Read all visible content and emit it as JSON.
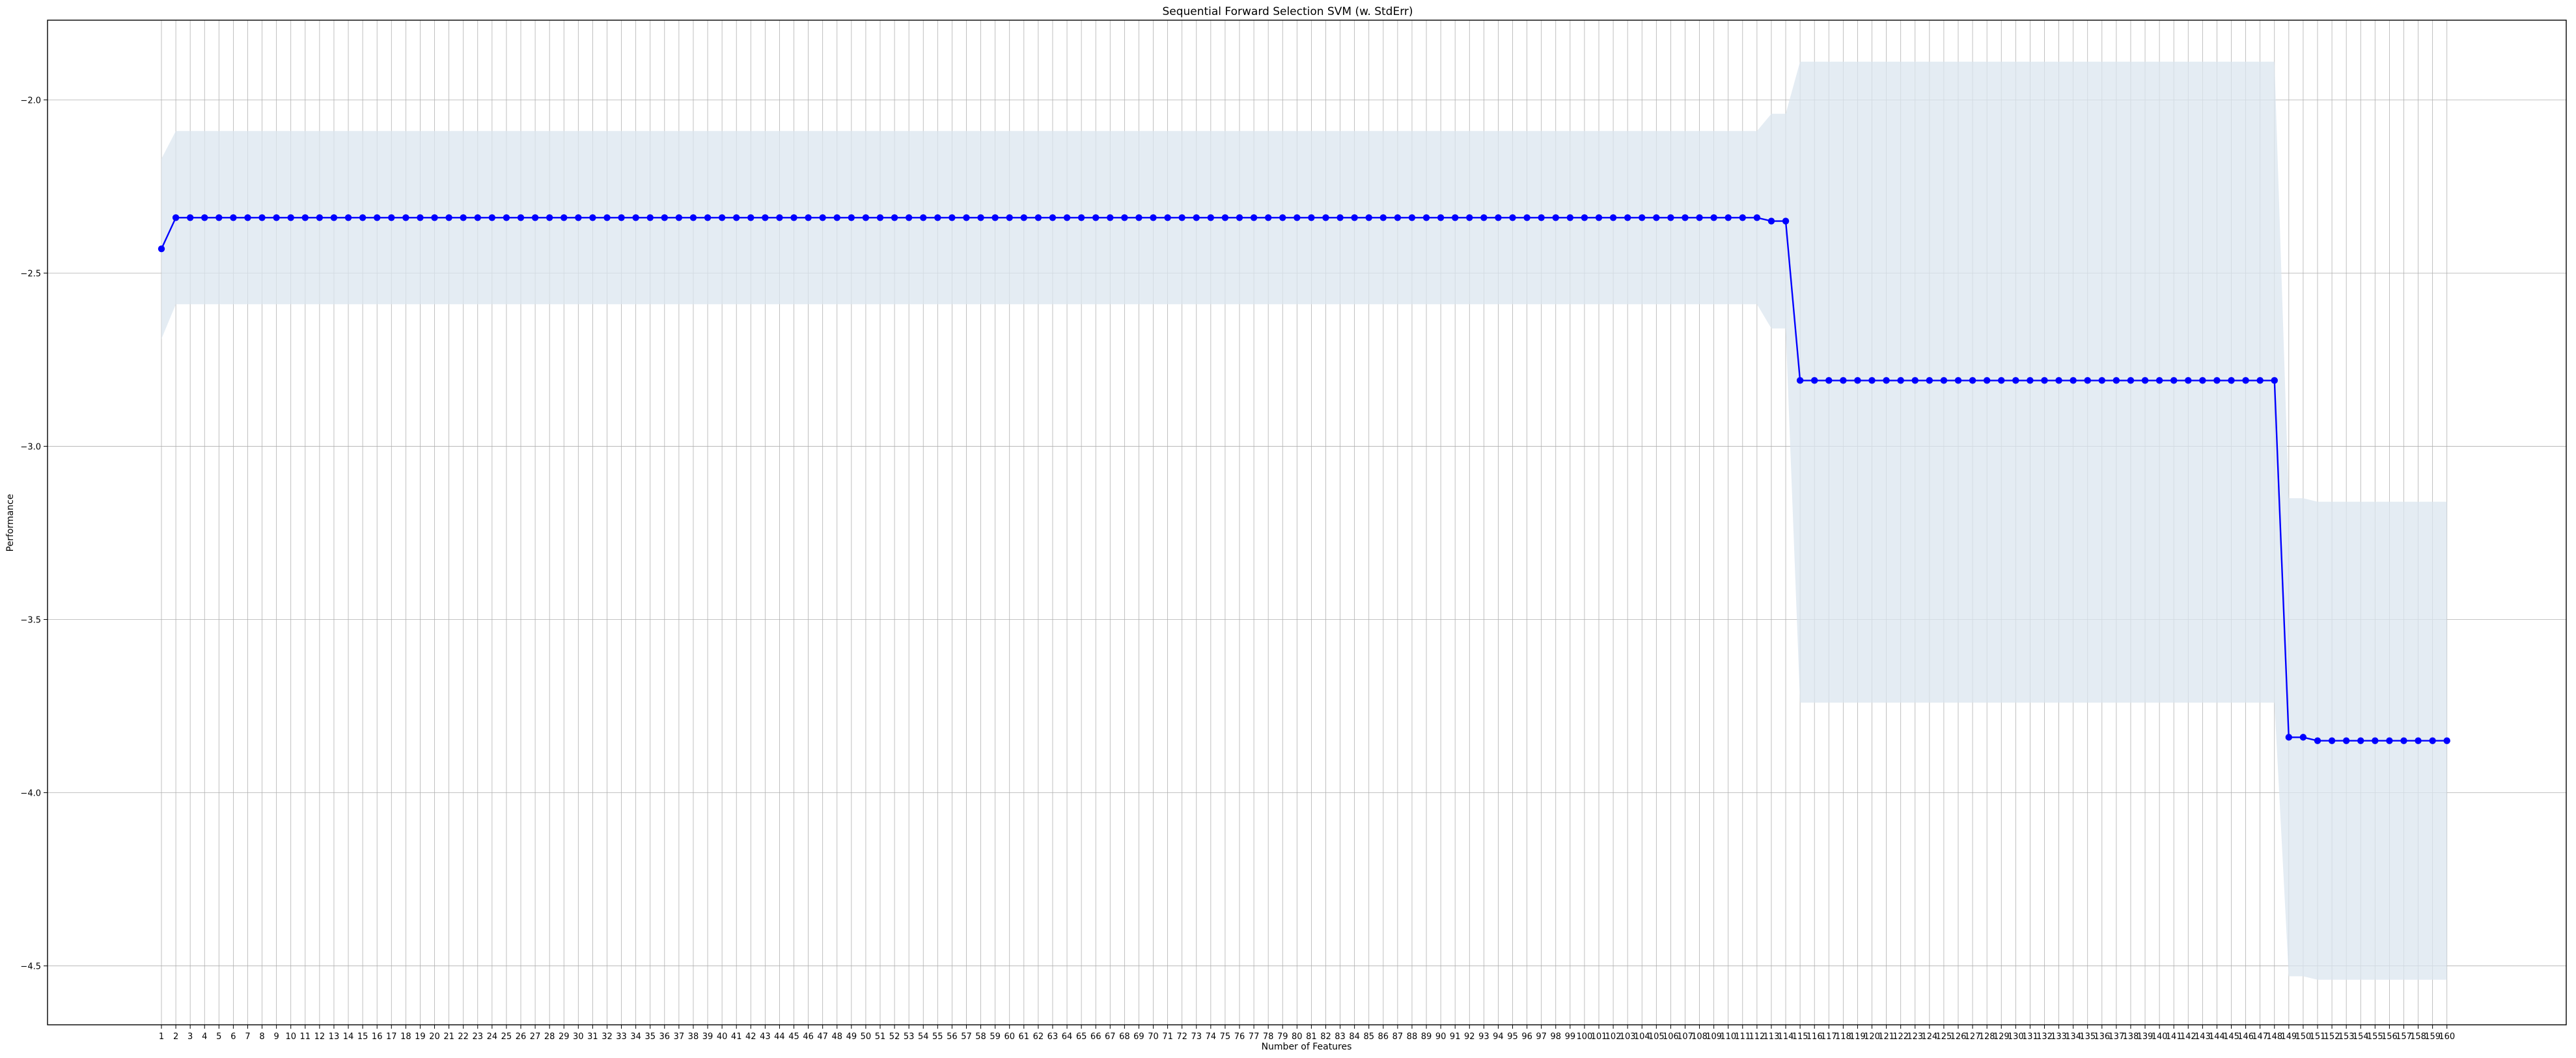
{
  "chart_data": {
    "type": "line",
    "title": "Sequential Forward Selection SVM (w. StdErr)",
    "xlabel": "Number of Features",
    "ylabel": "Performance",
    "grid": true,
    "x_range": [
      1,
      160
    ],
    "ylim": [
      -4.67,
      -1.77
    ],
    "yticks": [
      -2.0,
      -2.5,
      -3.0,
      -3.5,
      -4.0,
      -4.5
    ],
    "ytick_labels": [
      "−2.0",
      "−2.5",
      "−3.0",
      "−3.5",
      "−4.0",
      "−4.5"
    ],
    "colors": {
      "line": "#0000ff",
      "band": "#dbe5ef",
      "grid": "#b0b0b0"
    },
    "series": [
      {
        "segments": [
          {
            "from": 1,
            "to": 1,
            "mean": -2.43,
            "low": -2.69,
            "high": -2.17
          },
          {
            "from": 2,
            "to": 112,
            "mean": -2.34,
            "low": -2.59,
            "high": -2.09
          },
          {
            "from": 113,
            "to": 113,
            "mean": -2.35,
            "low": -2.66,
            "high": -2.04
          },
          {
            "from": 114,
            "to": 114,
            "mean": -2.35,
            "low": -2.66,
            "high": -2.04
          },
          {
            "from": 115,
            "to": 148,
            "mean": -2.81,
            "low": -3.74,
            "high": -1.89
          },
          {
            "from": 149,
            "to": 150,
            "mean": -3.84,
            "low": -4.53,
            "high": -3.15
          },
          {
            "from": 151,
            "to": 160,
            "mean": -3.85,
            "low": -4.54,
            "high": -3.16
          }
        ]
      }
    ]
  }
}
